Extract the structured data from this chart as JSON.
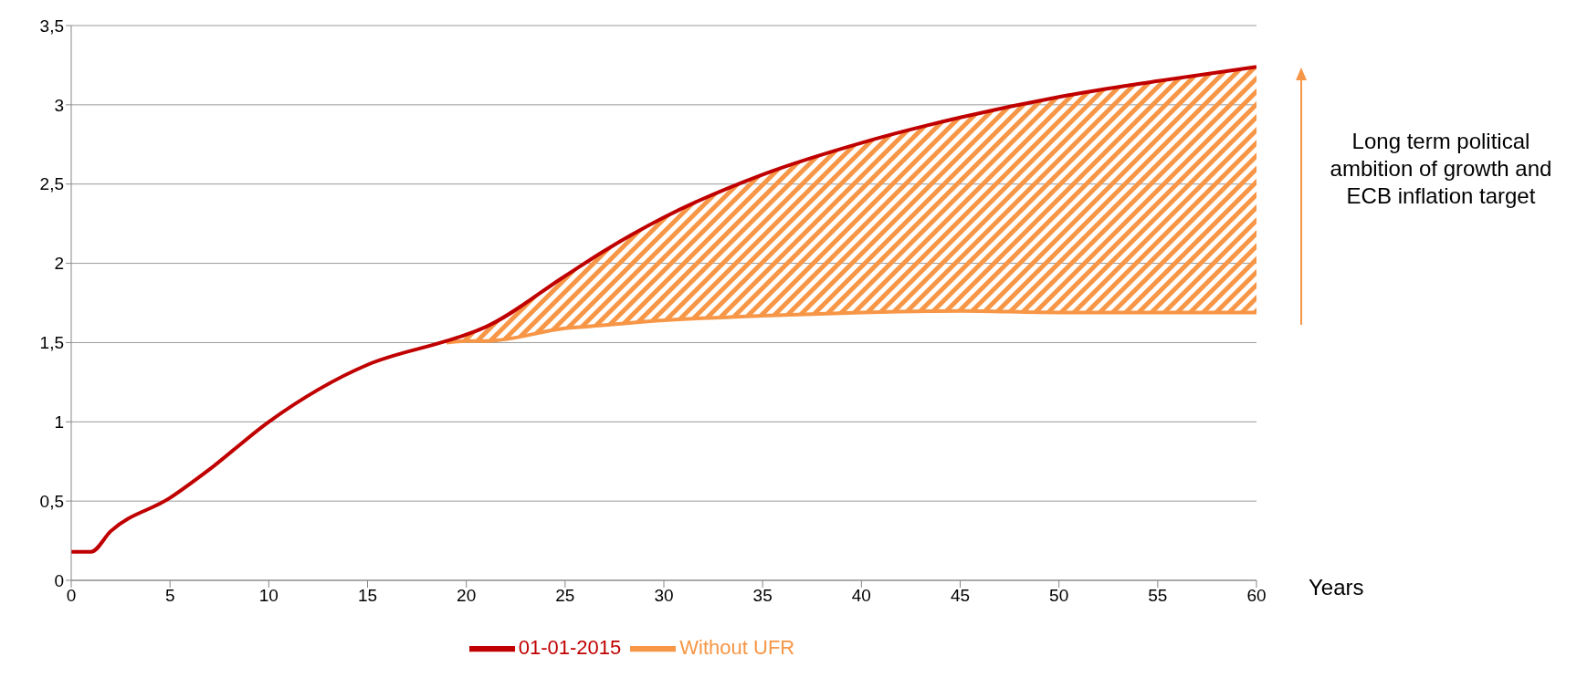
{
  "chart_data": {
    "type": "line",
    "xlabel": "Years",
    "x": [
      0,
      1,
      2,
      5,
      7,
      10,
      15,
      19,
      20,
      21,
      25,
      27,
      30,
      35,
      40,
      45,
      50,
      55,
      60
    ],
    "series": [
      {
        "name": "Without UFR",
        "color": "#f79646",
        "values": [
          null,
          null,
          null,
          null,
          null,
          null,
          null,
          1.5,
          1.51,
          1.51,
          1.59,
          1.61,
          1.64,
          1.67,
          1.69,
          1.7,
          1.69,
          1.69,
          1.69
        ],
        "lower": [
          null,
          null,
          null,
          null,
          null,
          null,
          null,
          1.5,
          1.51,
          1.51,
          1.59,
          1.61,
          1.64,
          1.67,
          1.69,
          1.7,
          1.69,
          1.69,
          1.69
        ],
        "upper": [
          null,
          null,
          null,
          null,
          null,
          null,
          null,
          1.51,
          1.55,
          1.6,
          1.92,
          2.08,
          2.29,
          2.56,
          2.76,
          2.92,
          3.05,
          3.15,
          3.24
        ]
      },
      {
        "name": "01-01-2015",
        "color": "#c00000",
        "values": [
          0.18,
          0.18,
          0.31,
          0.52,
          0.7,
          1.0,
          1.36,
          1.51,
          1.55,
          1.6,
          1.92,
          2.08,
          2.29,
          2.56,
          2.76,
          2.92,
          3.05,
          3.15,
          3.24
        ]
      }
    ],
    "xlim": [
      0,
      60
    ],
    "xticks": [
      0,
      5,
      10,
      15,
      20,
      25,
      30,
      35,
      40,
      45,
      50,
      55,
      60
    ],
    "ylim": [
      0,
      3.5
    ],
    "yticks": [
      0,
      {
        "value": 0.5,
        "label": "0,5"
      },
      1,
      {
        "value": 1.5,
        "label": "1,5"
      },
      2,
      {
        "value": 2.5,
        "label": "2,5"
      },
      3,
      {
        "value": 3.5,
        "label": "3,5"
      }
    ],
    "grid": "y",
    "legend": "bottom",
    "marker": "none",
    "line_style": "solid",
    "annotations": [
      "Long term political ambition of growth and ECB inflation target"
    ]
  }
}
